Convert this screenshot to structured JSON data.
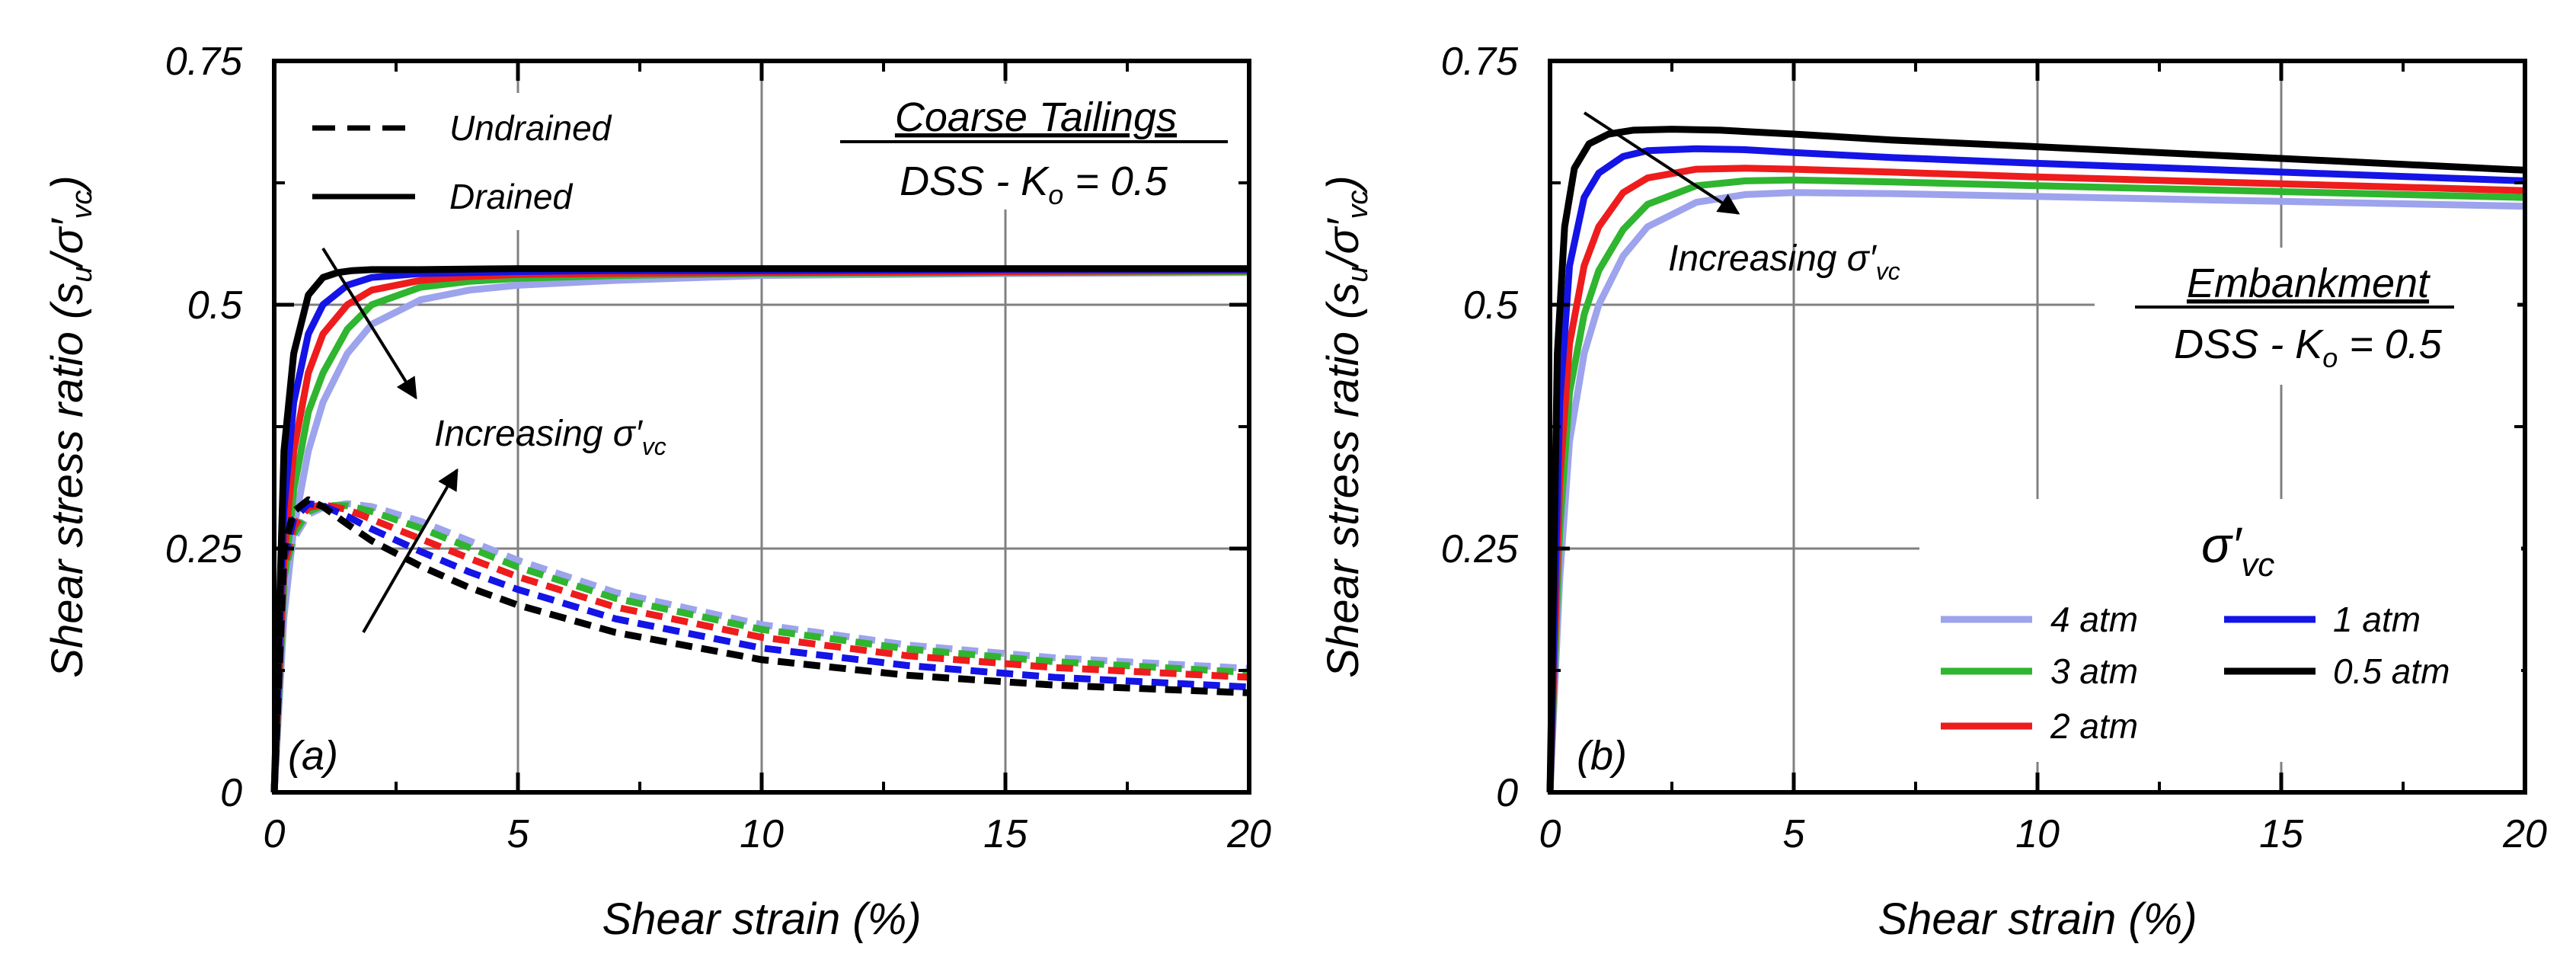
{
  "colors": {
    "4_atm": "#9da3ec",
    "3_atm": "#2fb52f",
    "2_atm": "#ee1c1c",
    "1_atm": "#1414e6",
    "0.5_atm": "#000000"
  },
  "chart_data": [
    {
      "type": "line",
      "panel_label": "(a)",
      "xlabel": "Shear strain (%)",
      "ylabel": "Shear stress ratio (s",
      "ylabel_parts": {
        "main": "Shear stress ratio (s",
        "sub1": "u",
        "mid": "/σ′",
        "sub2": "vc",
        "end": ")"
      },
      "xlim": [
        0,
        20
      ],
      "ylim": [
        0,
        0.75
      ],
      "x_ticks": [
        "0",
        "5",
        "10",
        "15",
        "20"
      ],
      "y_ticks": [
        "0",
        "0.25",
        "0.5",
        "0.75"
      ],
      "grid": true,
      "title_box": {
        "line1": "Coarse Tailings",
        "line2_main": "DSS - K",
        "line2_sub": "o",
        "line2_end": " = 0.5"
      },
      "legend": {
        "undrained": "Undrained",
        "drained": "Drained"
      },
      "annotation": {
        "main": "Increasing σ′",
        "sub": "vc"
      },
      "series": [
        {
          "name": "4 atm drained",
          "style": "solid",
          "color_key": "4_atm",
          "x": [
            0,
            0.2,
            0.4,
            0.7,
            1.0,
            1.5,
            2.0,
            3.0,
            4.0,
            5.0,
            7.0,
            10.0,
            15.0,
            20.0
          ],
          "y": [
            0,
            0.18,
            0.27,
            0.35,
            0.4,
            0.45,
            0.48,
            0.505,
            0.515,
            0.52,
            0.525,
            0.53,
            0.532,
            0.533
          ]
        },
        {
          "name": "3 atm drained",
          "style": "solid",
          "color_key": "3_atm",
          "x": [
            0,
            0.2,
            0.4,
            0.7,
            1.0,
            1.5,
            2.0,
            3.0,
            4.0,
            5.0,
            7.0,
            10.0,
            15.0,
            20.0
          ],
          "y": [
            0,
            0.21,
            0.31,
            0.39,
            0.43,
            0.475,
            0.5,
            0.518,
            0.524,
            0.527,
            0.53,
            0.532,
            0.533,
            0.534
          ]
        },
        {
          "name": "2 atm drained",
          "style": "solid",
          "color_key": "2_atm",
          "x": [
            0,
            0.2,
            0.4,
            0.7,
            1.0,
            1.5,
            2.0,
            3.0,
            4.0,
            5.0,
            7.0,
            10.0,
            15.0,
            20.0
          ],
          "y": [
            0,
            0.24,
            0.35,
            0.43,
            0.47,
            0.5,
            0.515,
            0.525,
            0.529,
            0.531,
            0.532,
            0.533,
            0.534,
            0.535
          ]
        },
        {
          "name": "1 atm drained",
          "style": "solid",
          "color_key": "1_atm",
          "x": [
            0,
            0.2,
            0.4,
            0.7,
            1.0,
            1.5,
            2.0,
            3.0,
            4.0,
            5.0,
            7.0,
            10.0,
            15.0,
            20.0
          ],
          "y": [
            0,
            0.29,
            0.4,
            0.47,
            0.5,
            0.52,
            0.528,
            0.532,
            0.533,
            0.534,
            0.535,
            0.535,
            0.536,
            0.536
          ]
        },
        {
          "name": "0.5 atm drained",
          "style": "solid",
          "color_key": "0.5_atm",
          "x": [
            0,
            0.2,
            0.4,
            0.7,
            1.0,
            1.3,
            1.6,
            2.0,
            3.0,
            5.0,
            10.0,
            15.0,
            20.0
          ],
          "y": [
            0,
            0.35,
            0.45,
            0.51,
            0.528,
            0.533,
            0.535,
            0.536,
            0.536,
            0.537,
            0.537,
            0.537,
            0.537
          ]
        },
        {
          "name": "4 atm undrained",
          "style": "dashed",
          "color_key": "4_atm",
          "x": [
            0,
            0.2,
            0.4,
            0.7,
            1.0,
            1.5,
            2.0,
            3.0,
            4.0,
            5.0,
            7.0,
            10.0,
            13.0,
            16.0,
            20.0
          ],
          "y": [
            0,
            0.21,
            0.26,
            0.285,
            0.292,
            0.296,
            0.293,
            0.278,
            0.258,
            0.238,
            0.205,
            0.172,
            0.151,
            0.138,
            0.127
          ]
        },
        {
          "name": "3 atm undrained",
          "style": "dashed",
          "color_key": "3_atm",
          "x": [
            0,
            0.2,
            0.4,
            0.7,
            1.0,
            1.5,
            2.0,
            3.0,
            4.0,
            5.0,
            7.0,
            10.0,
            13.0,
            16.0,
            20.0
          ],
          "y": [
            0,
            0.22,
            0.265,
            0.288,
            0.294,
            0.294,
            0.288,
            0.271,
            0.251,
            0.231,
            0.199,
            0.167,
            0.147,
            0.134,
            0.123
          ]
        },
        {
          "name": "2 atm undrained",
          "style": "dashed",
          "color_key": "2_atm",
          "x": [
            0,
            0.2,
            0.4,
            0.7,
            1.0,
            1.5,
            2.0,
            3.0,
            4.0,
            5.0,
            7.0,
            10.0,
            13.0,
            16.0,
            20.0
          ],
          "y": [
            0,
            0.23,
            0.272,
            0.292,
            0.295,
            0.29,
            0.28,
            0.26,
            0.24,
            0.221,
            0.19,
            0.159,
            0.14,
            0.128,
            0.118
          ]
        },
        {
          "name": "1 atm undrained",
          "style": "dashed",
          "color_key": "1_atm",
          "x": [
            0,
            0.2,
            0.4,
            0.7,
            1.0,
            1.5,
            2.0,
            3.0,
            4.0,
            5.0,
            7.0,
            10.0,
            13.0,
            16.0,
            20.0
          ],
          "y": [
            0,
            0.24,
            0.28,
            0.296,
            0.294,
            0.283,
            0.27,
            0.247,
            0.226,
            0.208,
            0.178,
            0.148,
            0.13,
            0.118,
            0.108
          ]
        },
        {
          "name": "0.5 atm undrained",
          "style": "dashed",
          "color_key": "0.5_atm",
          "x": [
            0,
            0.2,
            0.4,
            0.7,
            1.0,
            1.5,
            2.0,
            3.0,
            4.0,
            5.0,
            7.0,
            10.0,
            13.0,
            16.0,
            20.0
          ],
          "y": [
            0,
            0.25,
            0.288,
            0.3,
            0.293,
            0.275,
            0.258,
            0.232,
            0.21,
            0.192,
            0.164,
            0.136,
            0.12,
            0.11,
            0.102
          ]
        }
      ]
    },
    {
      "type": "line",
      "panel_label": "(b)",
      "xlabel": "Shear strain (%)",
      "ylabel": "Shear stress ratio (s",
      "ylabel_parts": {
        "main": "Shear stress ratio (s",
        "sub1": "u",
        "mid": "/σ′",
        "sub2": "vc",
        "end": ")"
      },
      "xlim": [
        0,
        20
      ],
      "ylim": [
        0,
        0.75
      ],
      "x_ticks": [
        "0",
        "5",
        "10",
        "15",
        "20"
      ],
      "y_ticks": [
        "0",
        "0.25",
        "0.5",
        "0.75"
      ],
      "grid": true,
      "title_box": {
        "line1": "Embankment",
        "line2_main": "DSS - K",
        "line2_sub": "o",
        "line2_end": " = 0.5"
      },
      "legend": {
        "title_main": "σ′",
        "title_sub": "vc",
        "entries": [
          {
            "label": "4 atm",
            "color_key": "4_atm"
          },
          {
            "label": "3 atm",
            "color_key": "3_atm"
          },
          {
            "label": "2 atm",
            "color_key": "2_atm"
          },
          {
            "label": "1 atm",
            "color_key": "1_atm"
          },
          {
            "label": "0.5 atm",
            "color_key": "0.5_atm"
          }
        ]
      },
      "annotation": {
        "main": "Increasing σ′",
        "sub": "vc"
      },
      "series": [
        {
          "name": "4 atm",
          "style": "solid",
          "color_key": "4_atm",
          "x": [
            0,
            0.2,
            0.4,
            0.7,
            1.0,
            1.5,
            2.0,
            3.0,
            4.0,
            5.0,
            7.0,
            10.0,
            15.0,
            20.0
          ],
          "y": [
            0,
            0.22,
            0.36,
            0.45,
            0.5,
            0.55,
            0.58,
            0.605,
            0.613,
            0.615,
            0.614,
            0.611,
            0.606,
            0.601
          ]
        },
        {
          "name": "3 atm",
          "style": "solid",
          "color_key": "3_atm",
          "x": [
            0,
            0.2,
            0.4,
            0.7,
            1.0,
            1.5,
            2.0,
            3.0,
            4.0,
            5.0,
            7.0,
            10.0,
            15.0,
            20.0
          ],
          "y": [
            0,
            0.27,
            0.41,
            0.49,
            0.535,
            0.577,
            0.603,
            0.622,
            0.627,
            0.628,
            0.626,
            0.622,
            0.616,
            0.61
          ]
        },
        {
          "name": "2 atm",
          "style": "solid",
          "color_key": "2_atm",
          "x": [
            0,
            0.2,
            0.4,
            0.7,
            1.0,
            1.5,
            2.0,
            3.0,
            4.0,
            5.0,
            7.0,
            10.0,
            15.0,
            20.0
          ],
          "y": [
            0,
            0.32,
            0.46,
            0.54,
            0.58,
            0.615,
            0.63,
            0.639,
            0.64,
            0.639,
            0.636,
            0.631,
            0.624,
            0.617
          ]
        },
        {
          "name": "1 atm",
          "style": "solid",
          "color_key": "1_atm",
          "x": [
            0,
            0.2,
            0.4,
            0.7,
            1.0,
            1.5,
            2.0,
            3.0,
            4.0,
            5.0,
            7.0,
            10.0,
            15.0,
            20.0
          ],
          "y": [
            0,
            0.4,
            0.54,
            0.61,
            0.635,
            0.652,
            0.658,
            0.66,
            0.659,
            0.656,
            0.651,
            0.645,
            0.636,
            0.627
          ]
        },
        {
          "name": "0.5 atm",
          "style": "solid",
          "color_key": "0.5_atm",
          "x": [
            0,
            0.15,
            0.3,
            0.5,
            0.8,
            1.2,
            1.7,
            2.5,
            3.5,
            5.0,
            7.0,
            10.0,
            15.0,
            20.0
          ],
          "y": [
            0,
            0.45,
            0.58,
            0.64,
            0.665,
            0.675,
            0.679,
            0.68,
            0.679,
            0.675,
            0.669,
            0.662,
            0.65,
            0.638
          ]
        }
      ]
    }
  ]
}
